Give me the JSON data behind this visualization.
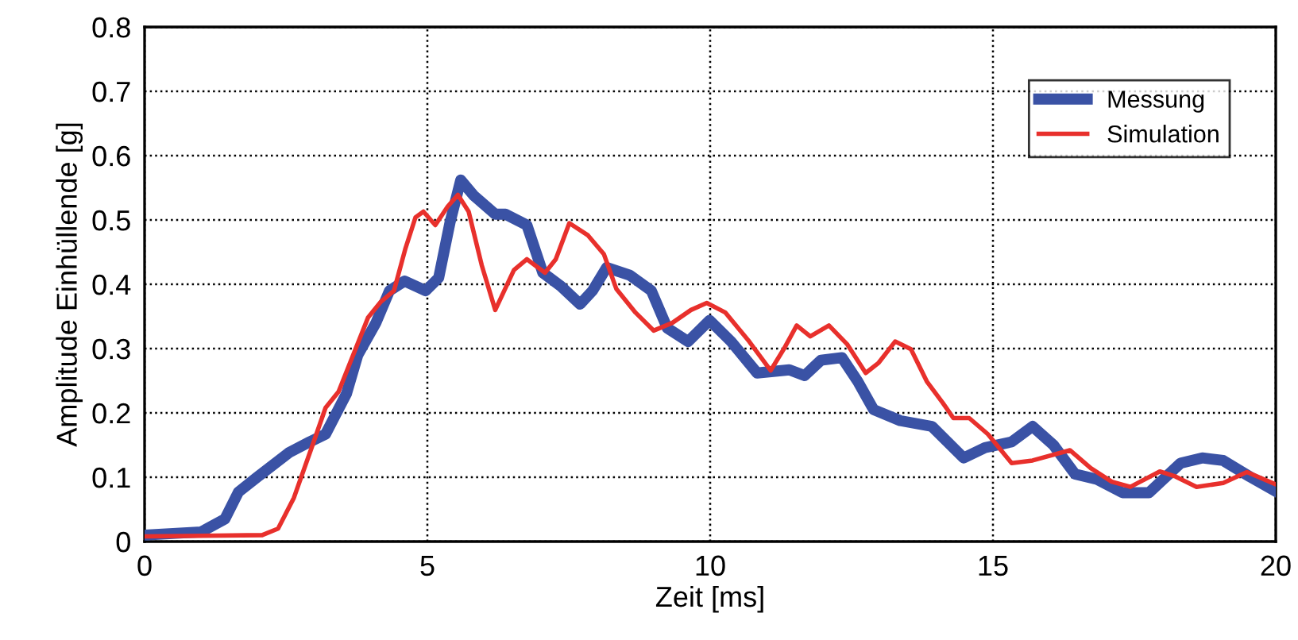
{
  "chart_data": {
    "type": "line",
    "xlabel": "Zeit [ms]",
    "ylabel": "Amplitude Einhüllende [g]",
    "xlim": [
      0,
      20
    ],
    "xticks": [
      0,
      5,
      10,
      15,
      20
    ],
    "ylim": [
      0,
      0.8
    ],
    "yticks": [
      0,
      0.1,
      0.2,
      0.3,
      0.4,
      0.5,
      0.6,
      0.7,
      0.8
    ],
    "grid": true,
    "legend": "top right",
    "line_style": "solid",
    "marker": "none",
    "series": [
      {
        "name": "Messung",
        "color": "#3a52a5",
        "x": [
          0,
          1,
          1.42,
          1.66,
          1.99,
          2.55,
          2.92,
          3.2,
          3.57,
          3.77,
          4.09,
          4.33,
          4.6,
          4.97,
          5.2,
          5.4,
          5.59,
          5.82,
          6.2,
          6.38,
          6.76,
          7.04,
          7.36,
          7.7,
          7.92,
          8.17,
          8.58,
          8.96,
          9.24,
          9.61,
          9.99,
          10.37,
          10.83,
          11.4,
          11.67,
          11.96,
          12.33,
          12.61,
          12.89,
          13.36,
          13.92,
          14.48,
          14.86,
          15.33,
          15.7,
          16.07,
          16.45,
          16.83,
          17.29,
          17.76,
          18.32,
          18.7,
          19.07,
          19.54,
          20
        ],
        "values": [
          0.01,
          0.015,
          0.035,
          0.077,
          0.1,
          0.138,
          0.155,
          0.167,
          0.23,
          0.29,
          0.34,
          0.39,
          0.405,
          0.39,
          0.41,
          0.496,
          0.562,
          0.538,
          0.509,
          0.509,
          0.492,
          0.418,
          0.397,
          0.369,
          0.39,
          0.426,
          0.414,
          0.39,
          0.332,
          0.311,
          0.344,
          0.311,
          0.262,
          0.267,
          0.258,
          0.282,
          0.286,
          0.249,
          0.205,
          0.188,
          0.179,
          0.13,
          0.146,
          0.155,
          0.179,
          0.15,
          0.105,
          0.097,
          0.076,
          0.076,
          0.122,
          0.13,
          0.126,
          0.101,
          0.078
        ]
      },
      {
        "name": "Simulation",
        "color": "#e8302c",
        "x": [
          0,
          2.08,
          2.36,
          2.64,
          2.97,
          3.2,
          3.43,
          3.67,
          3.95,
          4.18,
          4.41,
          4.61,
          4.79,
          4.93,
          5.14,
          5.36,
          5.54,
          5.73,
          5.96,
          6.2,
          6.53,
          6.76,
          7.08,
          7.27,
          7.51,
          7.84,
          8.12,
          8.34,
          8.68,
          9.0,
          9.33,
          9.66,
          9.94,
          10.27,
          10.69,
          11.07,
          11.3,
          11.53,
          11.77,
          12.1,
          12.42,
          12.75,
          12.98,
          13.27,
          13.55,
          13.83,
          14.11,
          14.3,
          14.58,
          14.91,
          15.33,
          15.7,
          16.36,
          16.73,
          17.1,
          17.43,
          17.95,
          18.23,
          18.6,
          19.07,
          19.49,
          20
        ],
        "values": [
          0.008,
          0.01,
          0.02,
          0.068,
          0.15,
          0.208,
          0.233,
          0.286,
          0.348,
          0.373,
          0.39,
          0.455,
          0.504,
          0.513,
          0.492,
          0.521,
          0.539,
          0.513,
          0.43,
          0.36,
          0.422,
          0.439,
          0.418,
          0.439,
          0.495,
          0.476,
          0.447,
          0.393,
          0.356,
          0.328,
          0.34,
          0.36,
          0.371,
          0.356,
          0.311,
          0.266,
          0.299,
          0.336,
          0.319,
          0.336,
          0.307,
          0.262,
          0.278,
          0.311,
          0.299,
          0.249,
          0.216,
          0.192,
          0.192,
          0.167,
          0.122,
          0.126,
          0.142,
          0.114,
          0.093,
          0.085,
          0.109,
          0.101,
          0.085,
          0.091,
          0.108,
          0.089
        ]
      }
    ]
  }
}
